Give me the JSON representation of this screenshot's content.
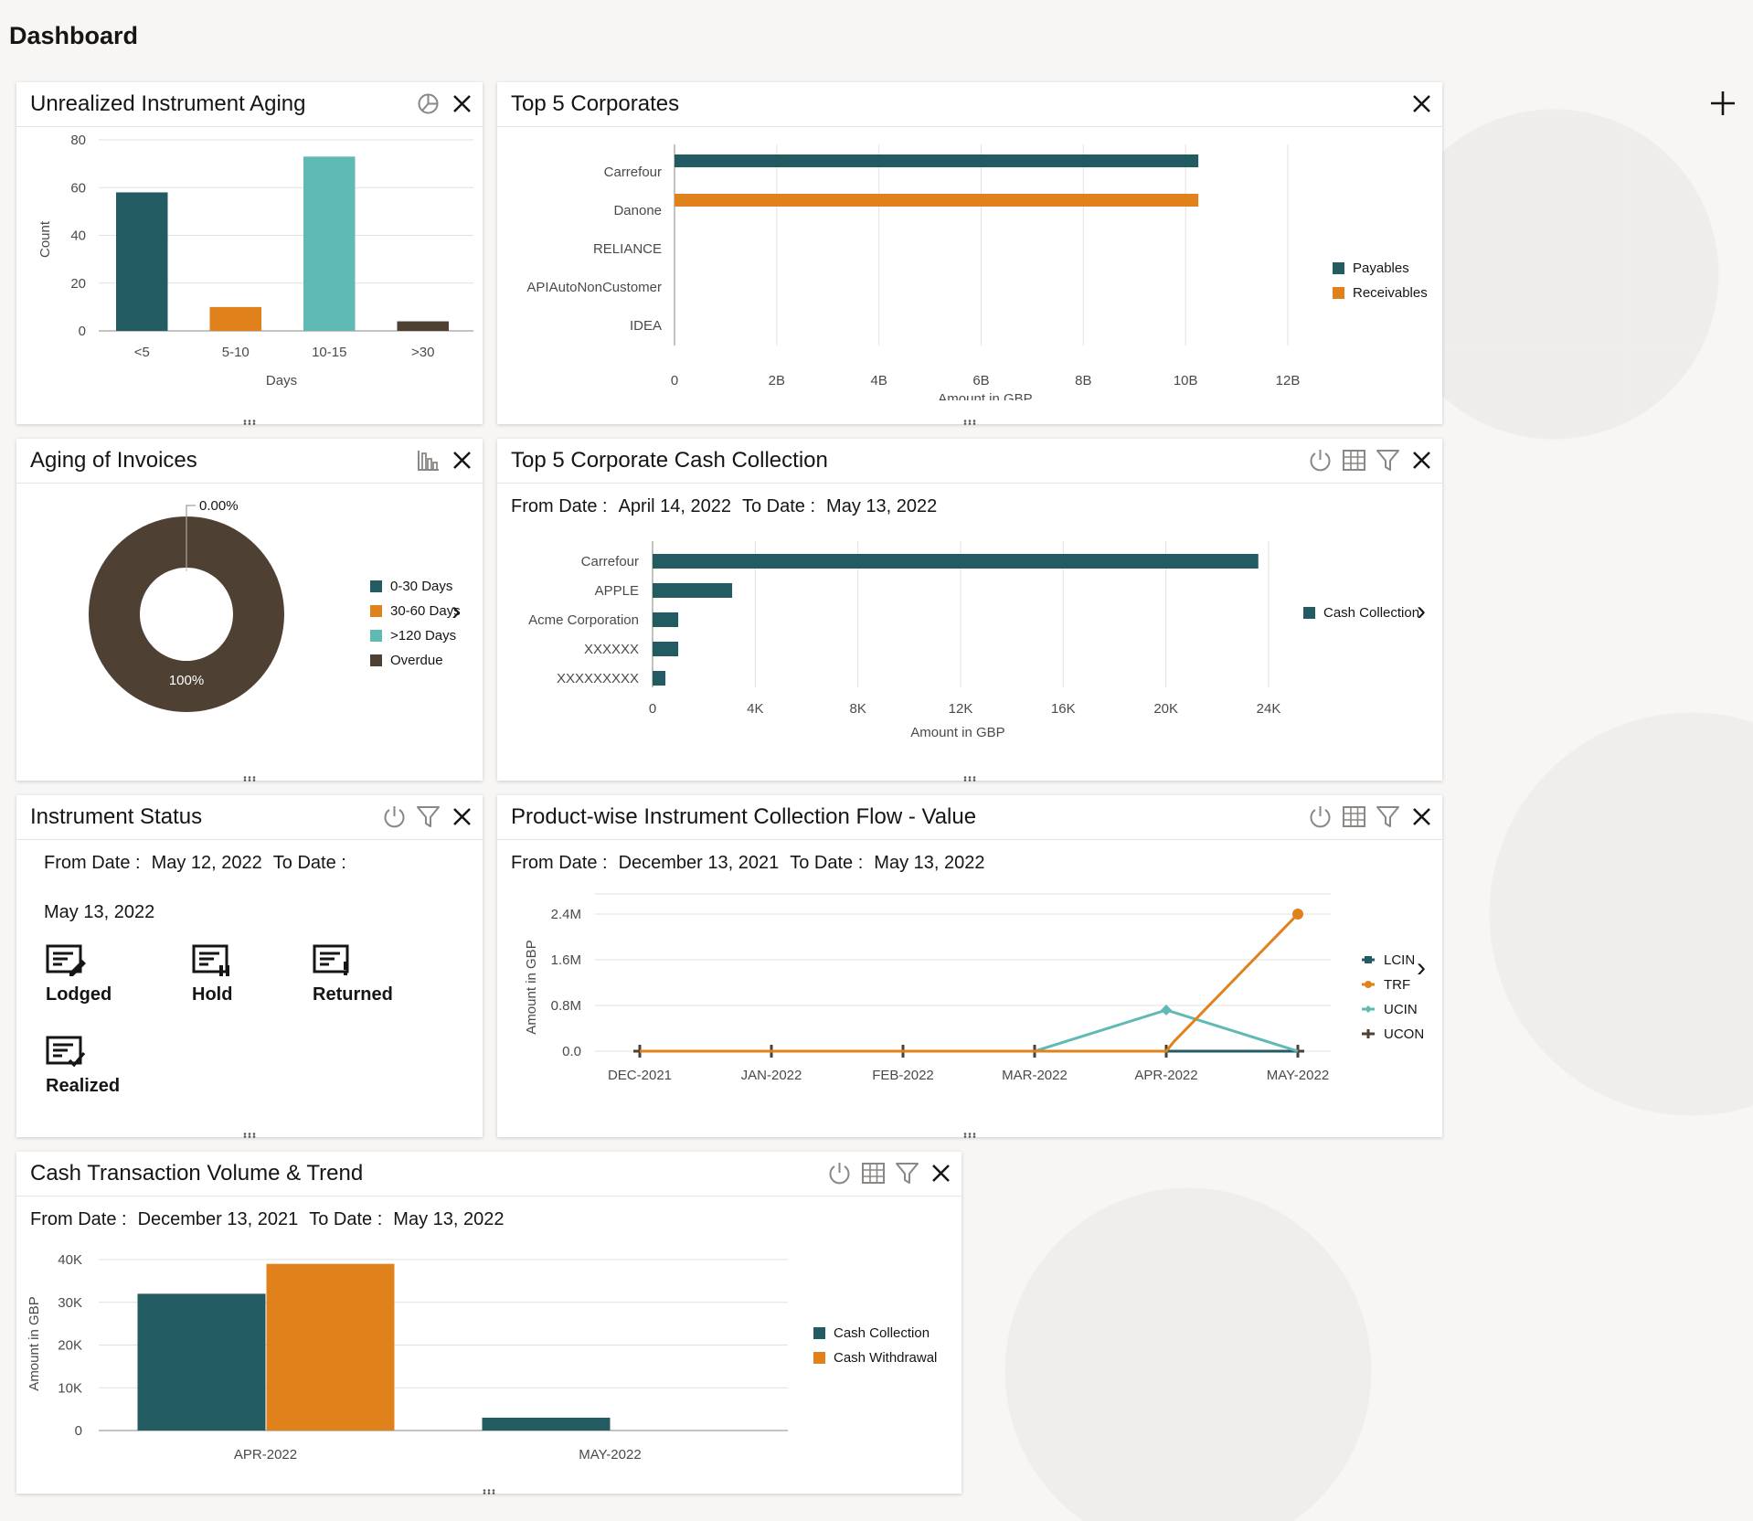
{
  "page": {
    "title": "Dashboard"
  },
  "cards": {
    "aging": {
      "title": "Unrealized Instrument Aging"
    },
    "top5": {
      "title": "Top 5 Corporates"
    },
    "invoices": {
      "title": "Aging of Invoices"
    },
    "cashcoll": {
      "title": "Top 5 Corporate Cash Collection",
      "from_label": "From Date :",
      "from": "April 14, 2022",
      "to_label": "To Date :",
      "to": "May 13, 2022"
    },
    "status": {
      "title": "Instrument Status",
      "from_label": "From Date :",
      "from": "May 12, 2022",
      "to_label": "To Date :",
      "to": "May 13, 2022",
      "items": [
        {
          "label": "Lodged"
        },
        {
          "label": "Hold"
        },
        {
          "label": "Returned"
        },
        {
          "label": "Realized"
        }
      ]
    },
    "flow": {
      "title": "Product-wise Instrument Collection Flow - Value",
      "from_label": "From Date :",
      "from": "December 13, 2021",
      "to_label": "To Date :",
      "to": "May 13, 2022"
    },
    "cashtrend": {
      "title": "Cash Transaction Volume & Trend",
      "from_label": "From Date :",
      "from": "December 13, 2021",
      "to_label": "To Date :",
      "to": "May 13, 2022"
    }
  },
  "colors": {
    "teal": "#235b63",
    "orange": "#e0811b",
    "aqua": "#5fbab4",
    "brown": "#4f4034"
  },
  "chart_data": [
    {
      "id": "aging",
      "type": "bar",
      "title": "Unrealized Instrument Aging",
      "xlabel": "Days",
      "ylabel": "Count",
      "categories": [
        "<5",
        "5-10",
        "10-15",
        ">30"
      ],
      "values": [
        58,
        10,
        73,
        4
      ],
      "colors": [
        "#235b63",
        "#e0811b",
        "#5fbab4",
        "#4f4034"
      ],
      "yticks": [
        "0",
        "20",
        "40",
        "60",
        "80"
      ],
      "ylim": [
        0,
        80
      ]
    },
    {
      "id": "top5",
      "type": "bar",
      "orientation": "horizontal",
      "title": "Top 5 Corporates",
      "xlabel": "Amount in GBP",
      "categories": [
        "Carrefour",
        "Danone",
        "RELIANCE",
        "APIAutoNonCustomer",
        "IDEA"
      ],
      "series": [
        {
          "name": "Payables",
          "color": "#235b63",
          "values": [
            10.25,
            0,
            0,
            0,
            0
          ]
        },
        {
          "name": "Receivables",
          "color": "#e0811b",
          "values": [
            0,
            10.25,
            0,
            0,
            0
          ]
        }
      ],
      "xticks": [
        "0",
        "2B",
        "4B",
        "6B",
        "8B",
        "10B",
        "12B"
      ],
      "xlim": [
        0,
        12
      ]
    },
    {
      "id": "invoices",
      "type": "pie",
      "title": "Aging of Invoices",
      "slices": [
        {
          "name": "0-30 Days",
          "color": "#235b63",
          "value": 0
        },
        {
          "name": "30-60 Days",
          "color": "#e0811b",
          "value": 0
        },
        {
          "name": ">120 Days",
          "color": "#5fbab4",
          "value": 0
        },
        {
          "name": "Overdue",
          "color": "#4f4034",
          "value": 100
        }
      ],
      "label_main": "100%",
      "label_callout": "0.00%"
    },
    {
      "id": "cashcoll",
      "type": "bar",
      "orientation": "horizontal",
      "title": "Top 5 Corporate Cash Collection",
      "xlabel": "Amount in GBP",
      "categories": [
        "Carrefour",
        "APPLE",
        "Acme Corporation",
        "XXXXXX",
        "XXXXXXXXX"
      ],
      "series": [
        {
          "name": "Cash Collection",
          "color": "#235b63",
          "values": [
            23600,
            3100,
            1000,
            1000,
            500
          ]
        }
      ],
      "xticks": [
        "0",
        "4K",
        "8K",
        "12K",
        "16K",
        "20K",
        "24K"
      ],
      "xlim": [
        0,
        24000
      ]
    },
    {
      "id": "flow",
      "type": "line",
      "title": "Product-wise Instrument Collection Flow - Value",
      "ylabel": "Amount in GBP",
      "categories": [
        "DEC-2021",
        "JAN-2022",
        "FEB-2022",
        "MAR-2022",
        "APR-2022",
        "MAY-2022"
      ],
      "series": [
        {
          "name": "LCIN",
          "color": "#235b63",
          "values": [
            0,
            0,
            0,
            0,
            0,
            0
          ]
        },
        {
          "name": "TRF",
          "color": "#e0811b",
          "values": [
            0,
            0,
            0,
            0,
            0,
            2.4
          ]
        },
        {
          "name": "UCIN",
          "color": "#5fbab4",
          "values": [
            0,
            0,
            0,
            0,
            0.72,
            0
          ]
        },
        {
          "name": "UCON",
          "color": "#4f4034",
          "values": [
            0,
            0,
            0,
            0,
            0,
            0
          ]
        }
      ],
      "yticks": [
        "0.0",
        "0.8M",
        "1.6M",
        "2.4M"
      ],
      "ylim": [
        0,
        2.4
      ]
    },
    {
      "id": "cashtrend",
      "type": "bar",
      "title": "Cash Transaction Volume & Trend",
      "ylabel": "Amount in GBP",
      "categories": [
        "APR-2022",
        "MAY-2022"
      ],
      "series": [
        {
          "name": "Cash Collection",
          "color": "#235b63",
          "values": [
            32000,
            3000
          ]
        },
        {
          "name": "Cash Withdrawal",
          "color": "#e0811b",
          "values": [
            39000,
            0
          ]
        }
      ],
      "yticks": [
        "0",
        "10K",
        "20K",
        "30K",
        "40K"
      ],
      "ylim": [
        0,
        40000
      ]
    }
  ]
}
